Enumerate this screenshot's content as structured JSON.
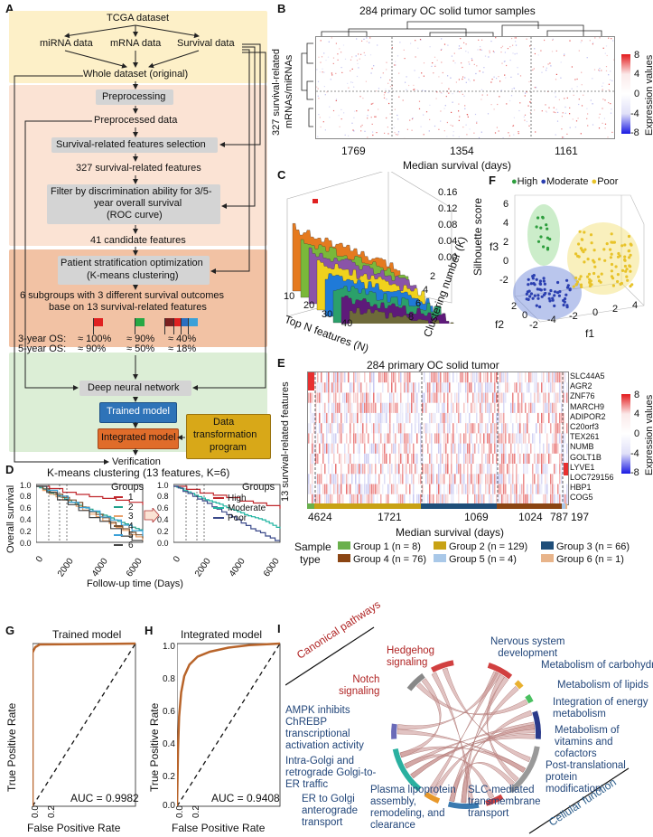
{
  "panels": {
    "A": "A",
    "B": "B",
    "C": "C",
    "D": "D",
    "E": "E",
    "F": "F",
    "G": "G",
    "H": "H",
    "I": "I"
  },
  "flowchart": {
    "dataset": "TCGA dataset",
    "mirna": "miRNA data",
    "mrna": "mRNA data",
    "survival": "Survival data",
    "whole": "Whole dataset (original)",
    "preprocessing": "Preprocessing",
    "preprocessed": "Preprocessed data",
    "selection": "Survival-related features selection",
    "features327": "327 survival-related features",
    "filter1": "Filter by discrimination ability for 3/5-",
    "filter2": "year overall survival",
    "filter3": "(ROC curve)",
    "candidates": "41 candidate features",
    "stratification1": "Patient stratification optimization",
    "stratification2": "(K-means clustering)",
    "subgroups1": "6 subgroups with 3 different survival outcomes",
    "subgroups2": "base on 13 survival-related features",
    "os3_label": "3-year OS:",
    "os3_v1": "≈ 100%",
    "os3_v2": "≈ 90%",
    "os3_v3": "≈ 40%",
    "os5_label": "5-year OS:",
    "os5_v1": "≈ 90%",
    "os5_v2": "≈ 50%",
    "os5_v3": "≈ 18%",
    "dnn": "Deep neural network",
    "trained": "Trained model",
    "integrated": "Integrated model",
    "transform1": "Data",
    "transform2": "transformation",
    "transform3": "program",
    "verification": "Verification"
  },
  "heatmapB": {
    "title": "284 primary OC solid tumor samples",
    "ylabel1": "327 survival-related",
    "ylabel2": "mRNAs/miRNAs",
    "xlabel": "Median survival (days)",
    "xticks": [
      "1769",
      "1354",
      "1161"
    ],
    "legend_title": "Expression values",
    "legend_ticks": [
      "8",
      "4",
      "0",
      "-4",
      "-8"
    ]
  },
  "panelC": {
    "xlabel": "Top N features (N)",
    "ylabel": "Clustering number (K)",
    "zlabel": "Silhouette score",
    "xticks": [
      "10",
      "20",
      "30",
      "40"
    ],
    "yticks": [
      "2",
      "4",
      "6",
      "8"
    ],
    "zticks": [
      "0.16",
      "0.12",
      "0.08",
      "0.04",
      "0.00"
    ]
  },
  "panelF": {
    "legend": [
      {
        "label": "High",
        "color": "#2e9e3e"
      },
      {
        "label": "Moderate",
        "color": "#2b3fb0"
      },
      {
        "label": "Poor",
        "color": "#e8c32a"
      }
    ],
    "zlabel": "f3",
    "xlabel": "f1",
    "ylabel": "f2",
    "zticks": [
      "6",
      "4",
      "2",
      "0",
      "-2"
    ],
    "xticks": [
      "-4",
      "-2",
      "0",
      "2",
      "4"
    ],
    "yticks": [
      "2",
      "0",
      "-2"
    ]
  },
  "heatmapE": {
    "title": "284 primary OC solid tumor",
    "ylabel": "13 survival-related features",
    "genes": [
      "SLC44A5",
      "AGR2",
      "ZNF76",
      "MARCH9",
      "ADIPOR2",
      "C20orf3",
      "TEX261",
      "NUMB",
      "GOLT1B",
      "LYVE1",
      "LOC729156",
      "HBP1",
      "COG5"
    ],
    "medians": [
      "4624",
      "1721",
      "1069",
      "1024",
      "787",
      "197"
    ],
    "xlabel": "Median survival (days)",
    "sample_label1": "Sample",
    "sample_label2": "type",
    "groups": [
      {
        "label": "Group 1 (n = 8)",
        "color": "#6ab04c"
      },
      {
        "label": "Group 2 (n = 129)",
        "color": "#c8a214"
      },
      {
        "label": "Group 3 (n = 66)",
        "color": "#1f4e79"
      },
      {
        "label": "Group 4 (n = 76)",
        "color": "#8b4513"
      },
      {
        "label": "Group 5 (n = 4)",
        "color": "#a9c8e8"
      },
      {
        "label": "Group 6 (n = 1)",
        "color": "#e8b48a"
      }
    ],
    "legend_title": "Expression values",
    "legend_ticks": [
      "8",
      "4",
      "0",
      "-4",
      "-8"
    ]
  },
  "panelD": {
    "title": "K-means clustering (13 features, K=6)",
    "ylabel": "Overall survival",
    "xlabel": "Follow-up time (Days)",
    "yticks": [
      "1.0",
      "0.8",
      "0.6",
      "0.4",
      "0.2",
      "0.0"
    ],
    "xticks": [
      "0",
      "2000",
      "4000",
      "6000"
    ],
    "groups_title": "Groups",
    "left_legend": [
      {
        "label": "1",
        "color": "#c0282d"
      },
      {
        "label": "2",
        "color": "#1f9f8a"
      },
      {
        "label": "3",
        "color": "#e8a06a"
      },
      {
        "label": "4",
        "color": "#7a5230"
      },
      {
        "label": "5",
        "color": "#3aa0d8"
      },
      {
        "label": "6",
        "color": "#444444"
      }
    ],
    "right_legend": [
      {
        "label": "High",
        "color": "#c0282d"
      },
      {
        "label": "Moderate",
        "color": "#1fb3a0"
      },
      {
        "label": "Poor",
        "color": "#3b4a8a"
      }
    ]
  },
  "rocG": {
    "title": "Trained model",
    "auc": "AUC = 0.9982",
    "ylabel": "True Positive Rate",
    "xlabel": "False Positive Rate",
    "ticks": [
      "0.0",
      "0.2",
      "0.4",
      "0.6",
      "0.8",
      "1.0"
    ]
  },
  "rocH": {
    "title": "Integrated model",
    "auc": "AUC = 0.9408",
    "ylabel": "True Positive Rate",
    "xlabel": "False Positive Rate",
    "ticks": [
      "0.0",
      "0.2",
      "0.4",
      "0.6",
      "0.8",
      "1.0"
    ]
  },
  "chordI": {
    "canonical": "Canonical pathways",
    "cellular": "Cellular function",
    "labels": {
      "hedgehog1": "Hedgehog",
      "hedgehog2": "signaling",
      "notch1": "Notch",
      "notch2": "signaling",
      "ampk1": "AMPK inhibits",
      "ampk2": "ChREBP",
      "ampk3": "transcriptional",
      "ampk4": "activation activity",
      "golgi1": "Intra-Golgi and",
      "golgi2": "retrograde Golgi-to-",
      "golgi3": "ER traffic",
      "er1": "ER to Golgi",
      "er2": "anterograde",
      "er3": "transport",
      "plasma1": "Plasma lipoprotein",
      "plasma2": "assembly,",
      "plasma3": "remodeling, and",
      "plasma4": "clearance",
      "slc1": "SLC-mediated",
      "slc2": "transmembrane",
      "slc3": "transport",
      "post1": "Post-translational",
      "post2": "protein",
      "post3": "modification",
      "vit1": "Metabolism of",
      "vit2": "vitamins and",
      "vit3": "cofactors",
      "energy1": "Integration of energy",
      "energy2": "metabolism",
      "lipids": "Metabolism of lipids",
      "carbs": "Metabolism of carbohydrates",
      "nervous1": "Nervous system",
      "nervous2": "development"
    }
  }
}
